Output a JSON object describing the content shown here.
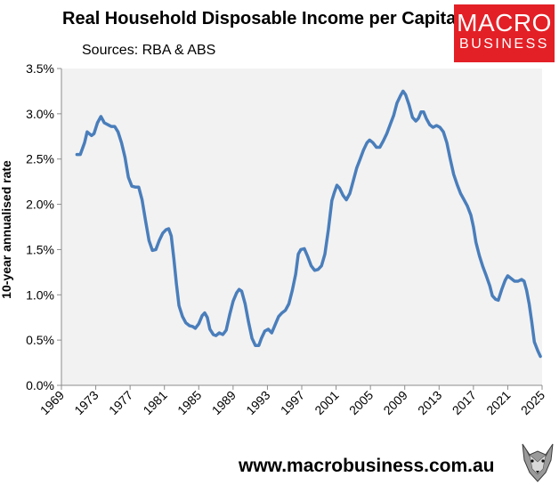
{
  "brand": {
    "logo_line1": "MACRO",
    "logo_line2": "BUSINESS",
    "logo_color": "#e32026",
    "website": "www.macrobusiness.com.au",
    "mascot_icon": "wolf-icon"
  },
  "chart_data": {
    "type": "line",
    "title": "Real Household Disposable Income per Capita",
    "subtitle": "Sources: RBA & ABS",
    "xlabel": "",
    "ylabel": "10-year annualised rate",
    "xlim": [
      1969,
      2025
    ],
    "ylim": [
      0,
      3.5
    ],
    "x_ticks": [
      1969,
      1973,
      1977,
      1981,
      1985,
      1989,
      1993,
      1997,
      2001,
      2005,
      2009,
      2013,
      2017,
      2021,
      2025
    ],
    "y_ticks": [
      0,
      0.5,
      1.0,
      1.5,
      2.0,
      2.5,
      3.0,
      3.5
    ],
    "y_tick_labels": [
      "0.0%",
      "0.5%",
      "1.0%",
      "1.5%",
      "2.0%",
      "2.5%",
      "3.0%",
      "3.5%"
    ],
    "grid": false,
    "plot_background": "#f2f2f2",
    "series": [
      {
        "color": "#4a7ebb",
        "points": [
          [
            1970.8,
            2.55
          ],
          [
            1971.2,
            2.55
          ],
          [
            1971.7,
            2.68
          ],
          [
            1972.0,
            2.8
          ],
          [
            1972.5,
            2.76
          ],
          [
            1972.8,
            2.78
          ],
          [
            1973.2,
            2.9
          ],
          [
            1973.6,
            2.97
          ],
          [
            1974.0,
            2.9
          ],
          [
            1974.4,
            2.88
          ],
          [
            1974.8,
            2.86
          ],
          [
            1975.2,
            2.86
          ],
          [
            1975.6,
            2.8
          ],
          [
            1976.0,
            2.68
          ],
          [
            1976.4,
            2.52
          ],
          [
            1976.8,
            2.3
          ],
          [
            1977.2,
            2.2
          ],
          [
            1977.6,
            2.19
          ],
          [
            1978.0,
            2.19
          ],
          [
            1978.4,
            2.05
          ],
          [
            1978.8,
            1.82
          ],
          [
            1979.2,
            1.6
          ],
          [
            1979.6,
            1.49
          ],
          [
            1980.0,
            1.5
          ],
          [
            1980.4,
            1.6
          ],
          [
            1980.8,
            1.68
          ],
          [
            1981.2,
            1.72
          ],
          [
            1981.5,
            1.73
          ],
          [
            1981.8,
            1.65
          ],
          [
            1982.1,
            1.4
          ],
          [
            1982.4,
            1.12
          ],
          [
            1982.7,
            0.88
          ],
          [
            1983.1,
            0.76
          ],
          [
            1983.5,
            0.69
          ],
          [
            1983.9,
            0.66
          ],
          [
            1984.3,
            0.65
          ],
          [
            1984.6,
            0.63
          ],
          [
            1985.0,
            0.68
          ],
          [
            1985.4,
            0.77
          ],
          [
            1985.7,
            0.8
          ],
          [
            1986.0,
            0.75
          ],
          [
            1986.3,
            0.62
          ],
          [
            1986.7,
            0.56
          ],
          [
            1987.0,
            0.55
          ],
          [
            1987.4,
            0.58
          ],
          [
            1987.8,
            0.56
          ],
          [
            1988.2,
            0.61
          ],
          [
            1988.6,
            0.78
          ],
          [
            1989.0,
            0.93
          ],
          [
            1989.4,
            1.02
          ],
          [
            1989.7,
            1.06
          ],
          [
            1990.0,
            1.04
          ],
          [
            1990.4,
            0.9
          ],
          [
            1990.8,
            0.7
          ],
          [
            1991.2,
            0.52
          ],
          [
            1991.6,
            0.44
          ],
          [
            1992.0,
            0.44
          ],
          [
            1992.3,
            0.52
          ],
          [
            1992.7,
            0.6
          ],
          [
            1993.1,
            0.62
          ],
          [
            1993.5,
            0.58
          ],
          [
            1993.9,
            0.67
          ],
          [
            1994.3,
            0.76
          ],
          [
            1994.7,
            0.8
          ],
          [
            1995.1,
            0.83
          ],
          [
            1995.5,
            0.9
          ],
          [
            1995.9,
            1.05
          ],
          [
            1996.3,
            1.23
          ],
          [
            1996.6,
            1.45
          ],
          [
            1996.9,
            1.5
          ],
          [
            1997.3,
            1.51
          ],
          [
            1997.7,
            1.42
          ],
          [
            1998.1,
            1.32
          ],
          [
            1998.5,
            1.27
          ],
          [
            1998.9,
            1.28
          ],
          [
            1999.3,
            1.32
          ],
          [
            1999.7,
            1.45
          ],
          [
            2000.1,
            1.72
          ],
          [
            2000.5,
            2.04
          ],
          [
            2000.8,
            2.13
          ],
          [
            2001.1,
            2.21
          ],
          [
            2001.4,
            2.18
          ],
          [
            2001.8,
            2.1
          ],
          [
            2002.2,
            2.05
          ],
          [
            2002.6,
            2.12
          ],
          [
            2003.0,
            2.26
          ],
          [
            2003.4,
            2.4
          ],
          [
            2003.8,
            2.5
          ],
          [
            2004.2,
            2.6
          ],
          [
            2004.6,
            2.68
          ],
          [
            2004.9,
            2.71
          ],
          [
            2005.3,
            2.68
          ],
          [
            2005.7,
            2.63
          ],
          [
            2006.1,
            2.63
          ],
          [
            2006.5,
            2.7
          ],
          [
            2006.9,
            2.78
          ],
          [
            2007.3,
            2.88
          ],
          [
            2007.7,
            2.98
          ],
          [
            2008.1,
            3.12
          ],
          [
            2008.5,
            3.2
          ],
          [
            2008.8,
            3.25
          ],
          [
            2009.1,
            3.21
          ],
          [
            2009.5,
            3.1
          ],
          [
            2009.9,
            2.96
          ],
          [
            2010.3,
            2.92
          ],
          [
            2010.6,
            2.95
          ],
          [
            2010.9,
            3.02
          ],
          [
            2011.2,
            3.02
          ],
          [
            2011.5,
            2.95
          ],
          [
            2011.9,
            2.88
          ],
          [
            2012.3,
            2.85
          ],
          [
            2012.7,
            2.87
          ],
          [
            2013.1,
            2.85
          ],
          [
            2013.5,
            2.8
          ],
          [
            2013.9,
            2.68
          ],
          [
            2014.3,
            2.5
          ],
          [
            2014.7,
            2.33
          ],
          [
            2015.1,
            2.22
          ],
          [
            2015.5,
            2.12
          ],
          [
            2015.9,
            2.05
          ],
          [
            2016.3,
            1.98
          ],
          [
            2016.7,
            1.88
          ],
          [
            2017.0,
            1.75
          ],
          [
            2017.3,
            1.58
          ],
          [
            2017.7,
            1.43
          ],
          [
            2018.1,
            1.31
          ],
          [
            2018.5,
            1.21
          ],
          [
            2018.9,
            1.1
          ],
          [
            2019.2,
            0.99
          ],
          [
            2019.6,
            0.95
          ],
          [
            2019.9,
            0.94
          ],
          [
            2020.3,
            1.06
          ],
          [
            2020.7,
            1.16
          ],
          [
            2021.0,
            1.21
          ],
          [
            2021.4,
            1.18
          ],
          [
            2021.8,
            1.15
          ],
          [
            2022.2,
            1.15
          ],
          [
            2022.6,
            1.17
          ],
          [
            2022.9,
            1.15
          ],
          [
            2023.2,
            1.05
          ],
          [
            2023.5,
            0.9
          ],
          [
            2023.8,
            0.7
          ],
          [
            2024.1,
            0.48
          ],
          [
            2024.5,
            0.38
          ],
          [
            2024.8,
            0.32
          ]
        ]
      }
    ]
  }
}
